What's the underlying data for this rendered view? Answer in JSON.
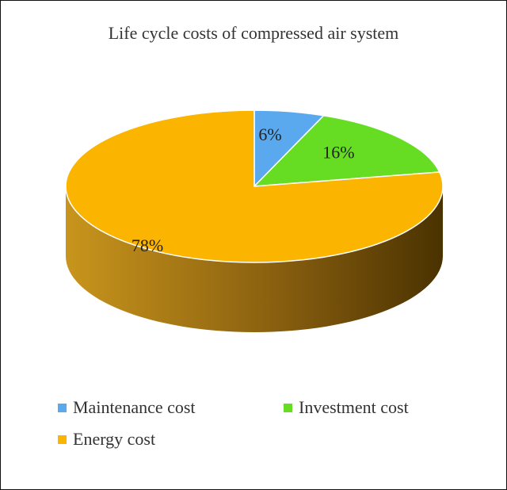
{
  "chart_data": {
    "type": "pie",
    "title": "Life cycle costs of compressed air system",
    "three_d": true,
    "legend_position": "bottom",
    "slices": [
      {
        "name": "Maintenance cost",
        "value": 6,
        "label": "6%",
        "color": "#5aa9ef"
      },
      {
        "name": "Investment cost",
        "value": 16,
        "label": "16%",
        "color": "#66dd22"
      },
      {
        "name": "Energy cost",
        "value": 78,
        "label": "78%",
        "color": "#fbb400"
      }
    ],
    "side_color_light": "#c8951c",
    "side_color_dark": "#4a3200"
  }
}
